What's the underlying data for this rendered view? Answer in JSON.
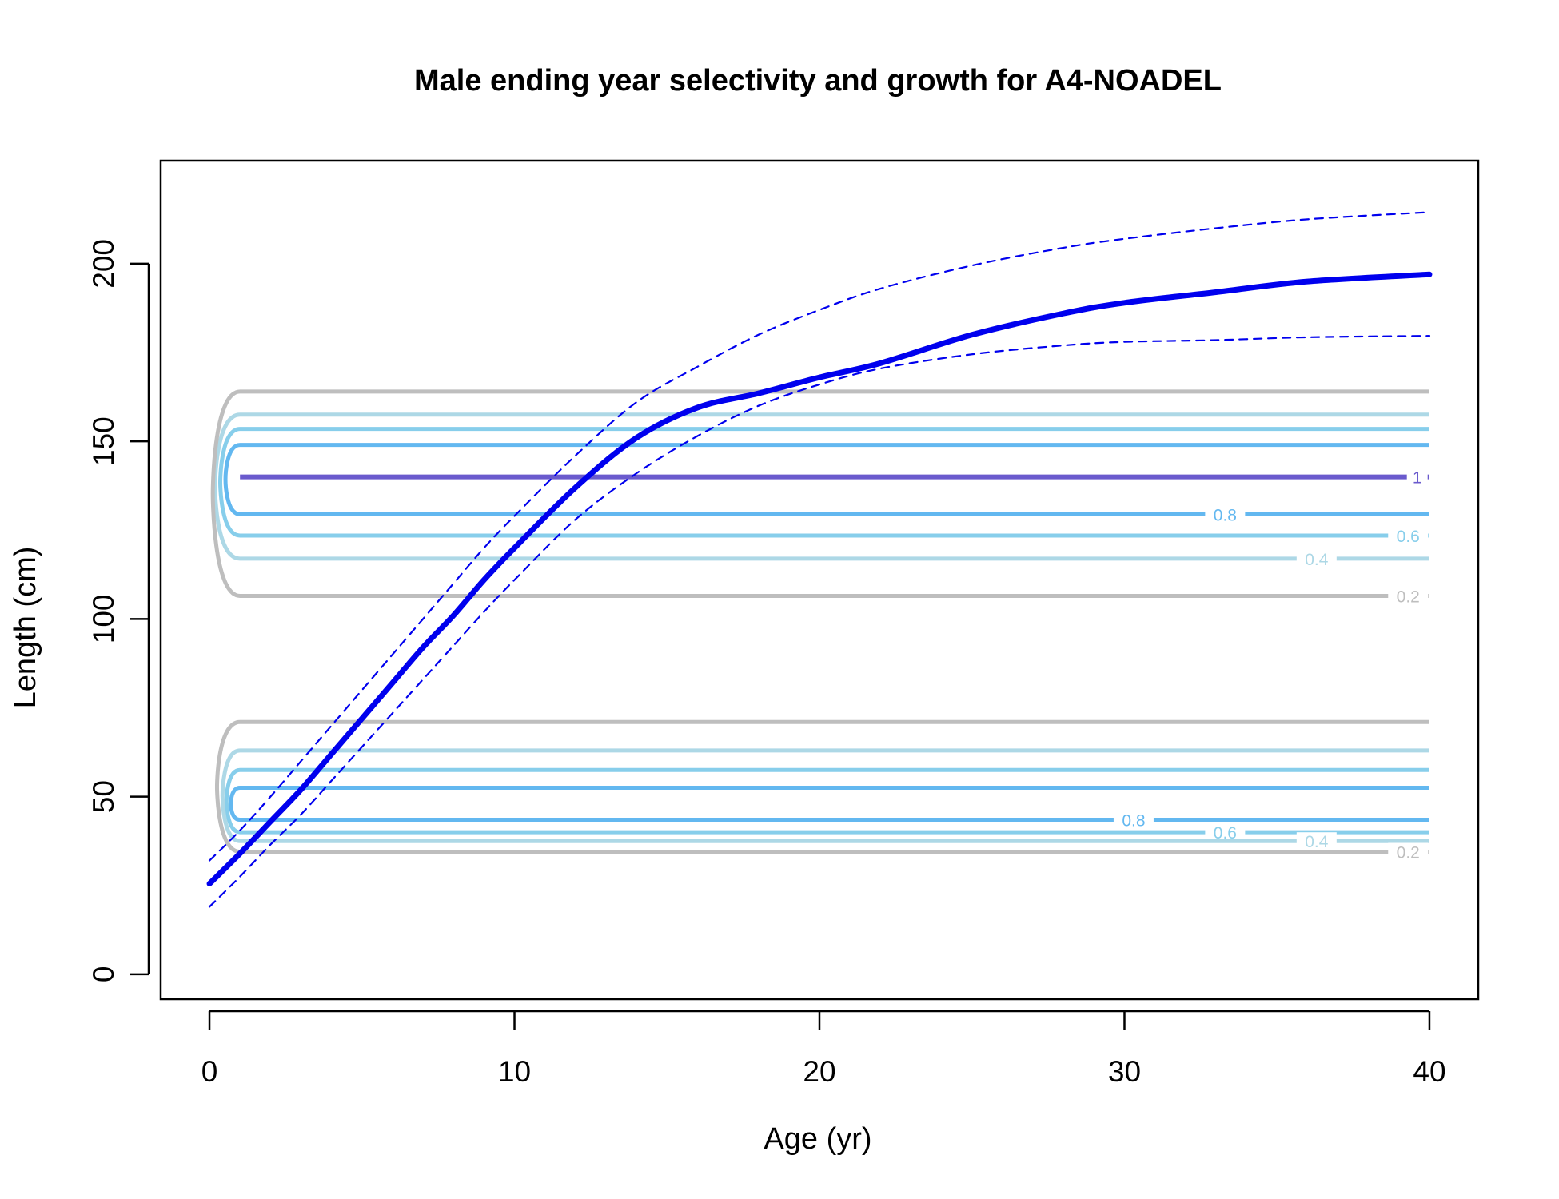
{
  "chart_data": {
    "type": "line",
    "title": "Male ending year selectivity and growth for A4-NOADEL",
    "xlabel": "Age (yr)",
    "ylabel": "Length (cm)",
    "xlim": [
      -1.6,
      41.6
    ],
    "ylim": [
      -7,
      229
    ],
    "xticks": [
      0,
      10,
      20,
      30,
      40
    ],
    "yticks": [
      0,
      50,
      100,
      150,
      200
    ],
    "series": [
      {
        "role": "mean-length-at-age",
        "color": "#0000ee",
        "x": [
          0,
          1,
          2,
          3,
          4,
          5,
          6,
          7,
          8,
          9,
          10,
          12,
          14,
          16,
          18,
          20,
          22,
          25,
          28,
          30,
          33,
          36,
          40
        ],
        "y": [
          25.5,
          34,
          43,
          52,
          62,
          72,
          82,
          92,
          101,
          111,
          120,
          137,
          151,
          159.5,
          163.5,
          168,
          172,
          180,
          186,
          189,
          192,
          195,
          197
        ]
      },
      {
        "role": "upper-interval",
        "color": "#0000ee",
        "x": [
          0,
          1,
          2,
          3,
          4,
          5,
          6,
          7,
          8,
          9,
          10,
          12,
          14,
          16,
          18,
          20,
          22,
          25,
          28,
          30,
          33,
          36,
          40
        ],
        "y": [
          32,
          40.5,
          50,
          60,
          70,
          80,
          90,
          100,
          110,
          120,
          129,
          146,
          161,
          171,
          180,
          187,
          193,
          199.5,
          204.5,
          207,
          210,
          212.5,
          214.5
        ]
      },
      {
        "role": "lower-interval",
        "color": "#0000ee",
        "x": [
          0,
          1,
          2,
          3,
          4,
          5,
          6,
          7,
          8,
          9,
          10,
          12,
          14,
          16,
          18,
          20,
          22,
          25,
          28,
          30,
          33,
          36,
          40
        ],
        "y": [
          19,
          27.5,
          36.5,
          45,
          54.5,
          64,
          73.5,
          83,
          92.5,
          102,
          111,
          128,
          141,
          151.5,
          160,
          166,
          170.5,
          174.5,
          177,
          178,
          178.5,
          179.3,
          179.7
        ]
      }
    ],
    "contours": [
      {
        "level": "1",
        "color": "#6a5acd",
        "y": [
          140
        ],
        "x_start": 1,
        "label_x": 39.6,
        "label_y": [
          140
        ]
      },
      {
        "level": "0.8",
        "color": "#63b8f0",
        "y": [
          129.5,
          149
        ],
        "x_start": 1,
        "label_x": 33.3,
        "label_y": [
          129.5
        ]
      },
      {
        "level": "0.6",
        "color": "#87ceeb",
        "y": [
          123.5,
          153.5
        ],
        "x_start": 1,
        "label_x": 39.3,
        "label_y": [
          123.5
        ]
      },
      {
        "level": "0.4",
        "color": "#add8e6",
        "y": [
          117,
          157.5
        ],
        "x_start": 1,
        "label_x": 36.3,
        "label_y": [
          117
        ]
      },
      {
        "level": "0.2",
        "color": "#bebebe",
        "y": [
          106.5,
          164
        ],
        "x_start": 1,
        "label_x": 39.3,
        "label_y": [
          106.5
        ]
      },
      {
        "level": "0.8",
        "color": "#63b8f0",
        "y": [
          43.5,
          52.5
        ],
        "x_start": 1,
        "label_x": 30.3,
        "label_y": [
          43.5
        ]
      },
      {
        "level": "0.6",
        "color": "#87ceeb",
        "y": [
          40,
          57.5
        ],
        "x_start": 1,
        "label_x": 33.3,
        "label_y": [
          40
        ]
      },
      {
        "level": "0.4",
        "color": "#add8e6",
        "y": [
          37.5,
          63
        ],
        "x_start": 1,
        "label_x": 36.3,
        "label_y": [
          37.5
        ]
      },
      {
        "level": "0.2",
        "color": "#bebebe",
        "y": [
          34.5,
          71
        ],
        "x_start": 1,
        "label_x": 39.3,
        "label_y": [
          34.5
        ]
      }
    ],
    "grid": false
  }
}
